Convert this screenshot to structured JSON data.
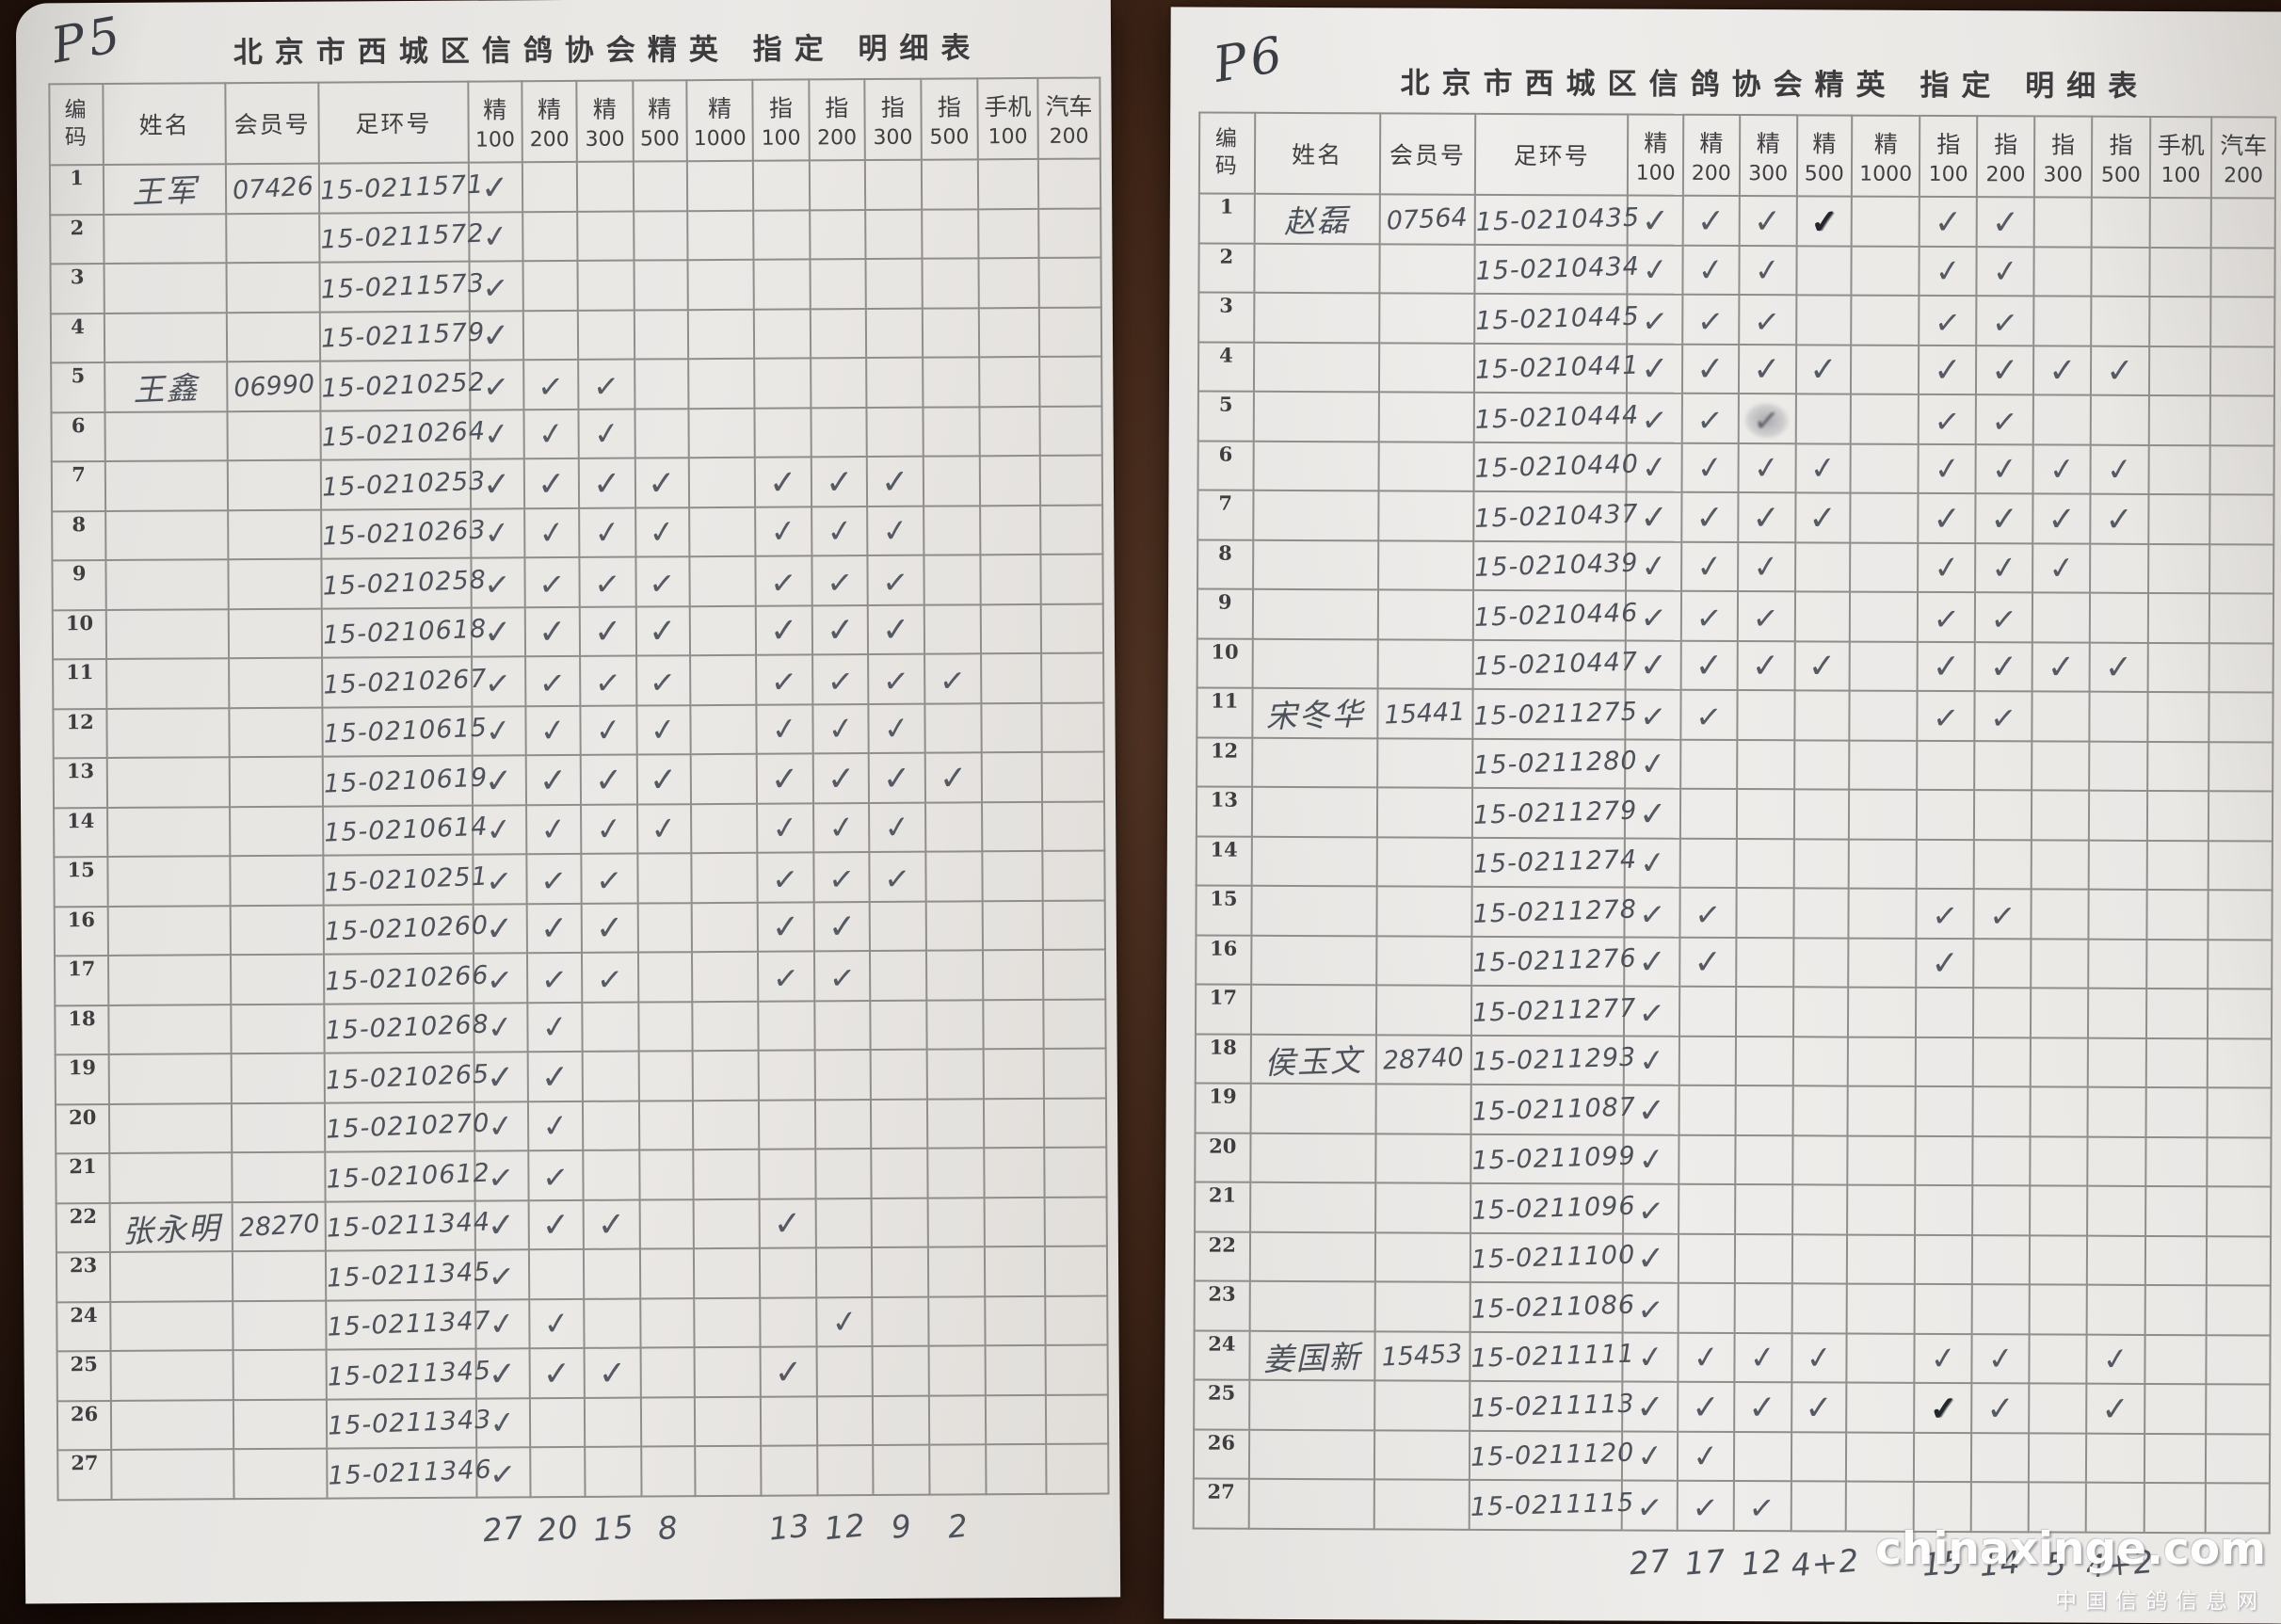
{
  "watermark": {
    "site": "chinaxinge.com",
    "caption": "中国信鸽信息网"
  },
  "marks": {
    "c": "✓",
    "dark": "✓",
    "smudge": "✓"
  },
  "header": {
    "code": "编 码",
    "name": "姓名",
    "member": "会员号",
    "ring": "足环号",
    "check_columns": [
      {
        "label": "精",
        "value": "100"
      },
      {
        "label": "精",
        "value": "200"
      },
      {
        "label": "精",
        "value": "300"
      },
      {
        "label": "精",
        "value": "500"
      },
      {
        "label": "精",
        "value": "1000"
      },
      {
        "label": "指",
        "value": "100"
      },
      {
        "label": "指",
        "value": "200"
      },
      {
        "label": "指",
        "value": "300"
      },
      {
        "label": "指",
        "value": "500"
      },
      {
        "label": "手机",
        "value": "100"
      },
      {
        "label": "汽车",
        "value": "200"
      }
    ]
  },
  "pages": [
    {
      "page_code": "P5",
      "title": "北京市西城区信鸽协会精英 指定 明细表",
      "rows": [
        {
          "n": "1",
          "name": "王军",
          "member": "07426",
          "ring": "15-0211571",
          "checks": [
            "c"
          ]
        },
        {
          "n": "2",
          "name": "",
          "member": "",
          "ring": "15-0211572",
          "checks": [
            "c"
          ]
        },
        {
          "n": "3",
          "name": "",
          "member": "",
          "ring": "15-0211573",
          "checks": [
            "c"
          ]
        },
        {
          "n": "4",
          "name": "",
          "member": "",
          "ring": "15-0211579",
          "checks": [
            "c"
          ]
        },
        {
          "n": "5",
          "name": "王鑫",
          "member": "06990",
          "ring": "15-0210252",
          "checks": [
            "c",
            "c",
            "c"
          ]
        },
        {
          "n": "6",
          "name": "",
          "member": "",
          "ring": "15-0210264",
          "checks": [
            "c",
            "c",
            "c"
          ]
        },
        {
          "n": "7",
          "name": "",
          "member": "",
          "ring": "15-0210253",
          "checks": [
            "c",
            "c",
            "c",
            "c",
            "",
            "c",
            "c",
            "c"
          ]
        },
        {
          "n": "8",
          "name": "",
          "member": "",
          "ring": "15-0210263",
          "checks": [
            "c",
            "c",
            "c",
            "c",
            "",
            "c",
            "c",
            "c"
          ]
        },
        {
          "n": "9",
          "name": "",
          "member": "",
          "ring": "15-0210258",
          "checks": [
            "c",
            "c",
            "c",
            "c",
            "",
            "c",
            "c",
            "c"
          ]
        },
        {
          "n": "10",
          "name": "",
          "member": "",
          "ring": "15-0210618",
          "checks": [
            "c",
            "c",
            "c",
            "c",
            "",
            "c",
            "c",
            "c"
          ]
        },
        {
          "n": "11",
          "name": "",
          "member": "",
          "ring": "15-0210267",
          "checks": [
            "c",
            "c",
            "c",
            "c",
            "",
            "c",
            "c",
            "c",
            "c"
          ]
        },
        {
          "n": "12",
          "name": "",
          "member": "",
          "ring": "15-0210615",
          "checks": [
            "c",
            "c",
            "c",
            "c",
            "",
            "c",
            "c",
            "c"
          ]
        },
        {
          "n": "13",
          "name": "",
          "member": "",
          "ring": "15-0210619",
          "checks": [
            "c",
            "c",
            "c",
            "c",
            "",
            "c",
            "c",
            "c",
            "c"
          ]
        },
        {
          "n": "14",
          "name": "",
          "member": "",
          "ring": "15-0210614",
          "checks": [
            "c",
            "c",
            "c",
            "c",
            "",
            "c",
            "c",
            "c"
          ]
        },
        {
          "n": "15",
          "name": "",
          "member": "",
          "ring": "15-0210251",
          "checks": [
            "c",
            "c",
            "c",
            "",
            "",
            "c",
            "c",
            "c"
          ]
        },
        {
          "n": "16",
          "name": "",
          "member": "",
          "ring": "15-0210260",
          "checks": [
            "c",
            "c",
            "c",
            "",
            "",
            "c",
            "c"
          ]
        },
        {
          "n": "17",
          "name": "",
          "member": "",
          "ring": "15-0210266",
          "checks": [
            "c",
            "c",
            "c",
            "",
            "",
            "c",
            "c"
          ]
        },
        {
          "n": "18",
          "name": "",
          "member": "",
          "ring": "15-0210268",
          "checks": [
            "c",
            "c"
          ]
        },
        {
          "n": "19",
          "name": "",
          "member": "",
          "ring": "15-0210265",
          "checks": [
            "c",
            "c"
          ]
        },
        {
          "n": "20",
          "name": "",
          "member": "",
          "ring": "15-0210270",
          "checks": [
            "c",
            "c"
          ]
        },
        {
          "n": "21",
          "name": "",
          "member": "",
          "ring": "15-0210612",
          "checks": [
            "c",
            "c"
          ]
        },
        {
          "n": "22",
          "name": "张永明",
          "member": "28270",
          "ring": "15-0211344",
          "checks": [
            "c",
            "c",
            "c",
            "",
            "",
            "c"
          ]
        },
        {
          "n": "23",
          "name": "",
          "member": "",
          "ring": "15-0211345",
          "checks": [
            "c"
          ]
        },
        {
          "n": "24",
          "name": "",
          "member": "",
          "ring": "15-0211347",
          "checks": [
            "c",
            "c",
            "",
            "",
            "",
            "",
            "c"
          ]
        },
        {
          "n": "25",
          "name": "",
          "member": "",
          "ring": "15-0211345",
          "checks": [
            "c",
            "c",
            "c",
            "",
            "",
            "c"
          ]
        },
        {
          "n": "26",
          "name": "",
          "member": "",
          "ring": "15-0211343",
          "checks": [
            "c"
          ]
        },
        {
          "n": "27",
          "name": "",
          "member": "",
          "ring": "15-0211346",
          "checks": [
            "c"
          ]
        }
      ],
      "totals": [
        "27",
        "20",
        "15",
        "8",
        "",
        "13",
        "12",
        "9",
        "2",
        "",
        ""
      ]
    },
    {
      "page_code": "P6",
      "title": "北京市西城区信鸽协会精英 指定 明细表",
      "rows": [
        {
          "n": "1",
          "name": "赵磊",
          "member": "07564",
          "ring": "15-0210435",
          "checks": [
            "c",
            "c",
            "c",
            "dark",
            "",
            "c",
            "c"
          ]
        },
        {
          "n": "2",
          "name": "",
          "member": "",
          "ring": "15-0210434",
          "checks": [
            "c",
            "c",
            "c",
            "",
            "",
            "c",
            "c"
          ]
        },
        {
          "n": "3",
          "name": "",
          "member": "",
          "ring": "15-0210445",
          "checks": [
            "c",
            "c",
            "c",
            "",
            "",
            "c",
            "c"
          ]
        },
        {
          "n": "4",
          "name": "",
          "member": "",
          "ring": "15-0210441",
          "checks": [
            "c",
            "c",
            "c",
            "c",
            "",
            "c",
            "c",
            "c",
            "c"
          ]
        },
        {
          "n": "5",
          "name": "",
          "member": "",
          "ring": "15-0210444",
          "checks": [
            "c",
            "c",
            "smudge",
            "",
            "",
            "c",
            "c"
          ]
        },
        {
          "n": "6",
          "name": "",
          "member": "",
          "ring": "15-0210440",
          "checks": [
            "c",
            "c",
            "c",
            "c",
            "",
            "c",
            "c",
            "c",
            "c"
          ]
        },
        {
          "n": "7",
          "name": "",
          "member": "",
          "ring": "15-0210437",
          "checks": [
            "c",
            "c",
            "c",
            "c",
            "",
            "c",
            "c",
            "c",
            "c"
          ]
        },
        {
          "n": "8",
          "name": "",
          "member": "",
          "ring": "15-0210439",
          "checks": [
            "c",
            "c",
            "c",
            "",
            "",
            "c",
            "c",
            "c"
          ]
        },
        {
          "n": "9",
          "name": "",
          "member": "",
          "ring": "15-0210446",
          "checks": [
            "c",
            "c",
            "c",
            "",
            "",
            "c",
            "c"
          ]
        },
        {
          "n": "10",
          "name": "",
          "member": "",
          "ring": "15-0210447",
          "checks": [
            "c",
            "c",
            "c",
            "c",
            "",
            "c",
            "c",
            "c",
            "c"
          ]
        },
        {
          "n": "11",
          "name": "宋冬华",
          "member": "15441",
          "ring": "15-0211275",
          "checks": [
            "c",
            "c",
            "",
            "",
            "",
            "c",
            "c"
          ]
        },
        {
          "n": "12",
          "name": "",
          "member": "",
          "ring": "15-0211280",
          "checks": [
            "c"
          ]
        },
        {
          "n": "13",
          "name": "",
          "member": "",
          "ring": "15-0211279",
          "checks": [
            "c"
          ]
        },
        {
          "n": "14",
          "name": "",
          "member": "",
          "ring": "15-0211274",
          "checks": [
            "c"
          ]
        },
        {
          "n": "15",
          "name": "",
          "member": "",
          "ring": "15-0211278",
          "checks": [
            "c",
            "c",
            "",
            "",
            "",
            "c",
            "c"
          ]
        },
        {
          "n": "16",
          "name": "",
          "member": "",
          "ring": "15-0211276",
          "checks": [
            "c",
            "c",
            "",
            "",
            "",
            "c"
          ]
        },
        {
          "n": "17",
          "name": "",
          "member": "",
          "ring": "15-0211277",
          "checks": [
            "c"
          ]
        },
        {
          "n": "18",
          "name": "侯玉文",
          "member": "28740",
          "ring": "15-0211293",
          "checks": [
            "c"
          ]
        },
        {
          "n": "19",
          "name": "",
          "member": "",
          "ring": "15-0211087",
          "checks": [
            "c"
          ]
        },
        {
          "n": "20",
          "name": "",
          "member": "",
          "ring": "15-0211099",
          "checks": [
            "c"
          ]
        },
        {
          "n": "21",
          "name": "",
          "member": "",
          "ring": "15-0211096",
          "checks": [
            "c"
          ]
        },
        {
          "n": "22",
          "name": "",
          "member": "",
          "ring": "15-0211100",
          "checks": [
            "c"
          ]
        },
        {
          "n": "23",
          "name": "",
          "member": "",
          "ring": "15-0211086",
          "checks": [
            "c"
          ]
        },
        {
          "n": "24",
          "name": "姜国新",
          "member": "15453",
          "ring": "15-0211111",
          "checks": [
            "c",
            "c",
            "c",
            "c",
            "",
            "c",
            "c",
            "",
            "c"
          ]
        },
        {
          "n": "25",
          "name": "",
          "member": "",
          "ring": "15-0211113",
          "checks": [
            "c",
            "c",
            "c",
            "c",
            "",
            "dark",
            "c",
            "",
            "c"
          ]
        },
        {
          "n": "26",
          "name": "",
          "member": "",
          "ring": "15-0211120",
          "checks": [
            "c",
            "c"
          ]
        },
        {
          "n": "27",
          "name": "",
          "member": "",
          "ring": "15-0211115",
          "checks": [
            "c",
            "c",
            "c"
          ]
        }
      ],
      "totals": [
        "27",
        "17",
        "12",
        "4+2",
        "",
        "15",
        "14",
        "5",
        "4+2",
        "",
        ""
      ]
    }
  ]
}
